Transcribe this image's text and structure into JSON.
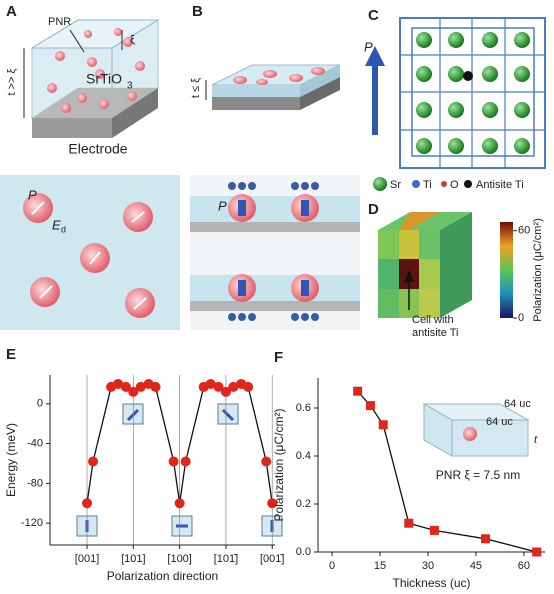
{
  "panels": {
    "A": {
      "label": "A",
      "pnr": "PNR",
      "xi": "ξ",
      "thickness": "t >> ξ",
      "material": "SrTiO",
      "material_sub": "3",
      "electrode": "Electrode",
      "p": "P",
      "field": "E",
      "field_sub": "d"
    },
    "B": {
      "label": "B",
      "thickness": "t ≤ ξ",
      "p": "P"
    },
    "C": {
      "label": "C",
      "axis": "P",
      "legend": [
        "Sr",
        "Ti",
        "O",
        "Antisite Ti"
      ]
    },
    "D": {
      "label": "D",
      "colorbar_title": "Polarization (μC/cm²)",
      "colorbar_ticks": [
        0,
        60
      ],
      "colorbar_lim": [
        0,
        66
      ],
      "annotation_line1": "Cell with",
      "annotation_line2": "antisite Ti"
    }
  },
  "chart_data": [
    {
      "type": "line",
      "panel": "E",
      "xlabel": "Polarization direction",
      "ylabel": "Energy (meV)",
      "x": [
        0,
        0.13,
        0.52,
        0.67,
        0.84,
        1.0,
        1.16,
        1.33,
        1.48,
        1.87,
        2.0,
        2.13,
        2.52,
        2.67,
        2.84,
        3.0,
        3.16,
        3.33,
        3.48,
        3.87,
        4.0
      ],
      "series": [
        {
          "values": [
            -100,
            -58,
            17,
            20,
            17,
            12,
            17,
            20,
            17,
            -58,
            -100,
            -58,
            17,
            20,
            17,
            12,
            17,
            20,
            17,
            -58,
            -100
          ],
          "marker_color": "#e0251b",
          "line_color": "#111111"
        }
      ],
      "marker": "circle",
      "xlim": [
        -0.8,
        4.06
      ],
      "ylim": [
        -142,
        29
      ],
      "xticks": [
        {
          "value": 0,
          "label": "[001]"
        },
        {
          "value": 1,
          "label": "[101]"
        },
        {
          "value": 2,
          "label": "[100]"
        },
        {
          "value": 3,
          "label": "[101̄]"
        },
        {
          "value": 4,
          "label": "[001̄]"
        }
      ],
      "yticks": [
        0,
        -40,
        -80,
        -120
      ],
      "grid": true
    },
    {
      "type": "line",
      "panel": "F",
      "xlabel": "Thickness (uc)",
      "ylabel": "Polarization (μC/cm²)",
      "x": [
        8,
        12,
        16,
        24,
        32,
        48,
        64
      ],
      "series": [
        {
          "values": [
            0.67,
            0.61,
            0.53,
            0.12,
            0.09,
            0.055,
            0.0
          ],
          "marker_color": "#e0251b",
          "line_color": "#111111"
        }
      ],
      "marker": "square",
      "xlim": [
        -4.4,
        66.6
      ],
      "ylim": [
        0,
        0.725
      ],
      "xticks": [
        0,
        15,
        30,
        45,
        60
      ],
      "yticks": [
        {
          "value": 0,
          "label": "0.0"
        },
        0.2,
        0.4,
        0.6
      ],
      "grid": false,
      "inset": {
        "edge1": "64 uc",
        "edge2": "64 uc",
        "edge3": "t",
        "caption": "PNR ξ = 7.5 nm"
      }
    }
  ]
}
